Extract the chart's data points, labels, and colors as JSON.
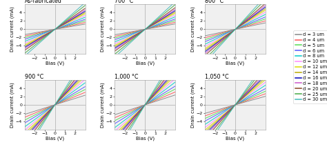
{
  "panels": [
    {
      "title": "As-fabricated",
      "row": 0,
      "col": 0
    },
    {
      "title": "700 °C",
      "row": 0,
      "col": 1
    },
    {
      "title": "800 °C",
      "row": 0,
      "col": 2
    },
    {
      "title": "900 °C",
      "row": 1,
      "col": 0
    },
    {
      "title": "1,000 °C",
      "row": 1,
      "col": 1
    },
    {
      "title": "1,050 °C",
      "row": 1,
      "col": 2
    }
  ],
  "devices": [
    {
      "label": "d = 3 um",
      "color": "#888888",
      "slope_base": 0.5
    },
    {
      "label": "d = 4 um",
      "color": "#ff5555",
      "slope_base": 0.65
    },
    {
      "label": "d = 5 um",
      "color": "#55dd55",
      "slope_base": 0.8
    },
    {
      "label": "d = 6 um",
      "color": "#5555ff",
      "slope_base": 0.95
    },
    {
      "label": "d = 8 um",
      "color": "#00cccc",
      "slope_base": 1.15
    },
    {
      "label": "d = 10 um",
      "color": "#ff88ff",
      "slope_base": 1.33
    },
    {
      "label": "d = 12 um",
      "color": "#dddd00",
      "slope_base": 1.48
    },
    {
      "label": "d = 14 um",
      "color": "#bbaa00",
      "slope_base": 1.6
    },
    {
      "label": "d = 16 um",
      "color": "#0000bb",
      "slope_base": 1.72
    },
    {
      "label": "d = 18 um",
      "color": "#cc55cc",
      "slope_base": 1.85
    },
    {
      "label": "d = 20 um",
      "color": "#884422",
      "slope_base": 2.0
    },
    {
      "label": "d = 25 um",
      "color": "#44aa44",
      "slope_base": 2.28
    },
    {
      "label": "d = 30 um",
      "color": "#44bbbb",
      "slope_base": 2.55
    }
  ],
  "panel_slope_factors": [
    0.85,
    0.88,
    1.05,
    1.55,
    1.6,
    1.38
  ],
  "xlim": [
    -3,
    3
  ],
  "ylim": [
    -6,
    6
  ],
  "xticks": [
    -2,
    -1,
    0,
    1,
    2
  ],
  "yticks": [
    -4,
    -2,
    0,
    2,
    4
  ],
  "xlabel": "Bias (V)",
  "ylabel": "Drain current (mA)",
  "bg_color": "#f0f0f0",
  "line_width": 0.65,
  "title_fontsize": 5.8,
  "label_fontsize": 5.0,
  "tick_fontsize": 4.5,
  "legend_fontsize": 4.8
}
